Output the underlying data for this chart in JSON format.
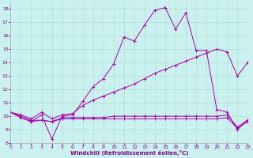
{
  "xlabel": "Windchill (Refroidissement éolien,°C)",
  "xlim": [
    0,
    23
  ],
  "ylim": [
    8,
    18.5
  ],
  "yticks": [
    8,
    9,
    10,
    11,
    12,
    13,
    14,
    15,
    16,
    17,
    18
  ],
  "xticks": [
    0,
    1,
    2,
    3,
    4,
    5,
    6,
    7,
    8,
    9,
    10,
    11,
    12,
    13,
    14,
    15,
    16,
    17,
    18,
    19,
    20,
    21,
    22,
    23
  ],
  "bg_color": "#caf0f0",
  "grid_color": "#aaddcc",
  "line_color": "#aa00aa",
  "lines": [
    [
      10.3,
      9.9,
      9.6,
      10.1,
      8.3,
      10.0,
      10.1,
      11.1,
      12.2,
      12.8,
      13.9,
      15.9,
      15.6,
      16.8,
      17.9,
      18.1,
      16.5,
      17.7,
      14.9,
      14.9,
      10.5,
      10.3,
      9.0,
      9.7
    ],
    [
      10.3,
      10.1,
      9.8,
      10.3,
      9.8,
      10.1,
      10.2,
      10.8,
      11.2,
      11.5,
      11.8,
      12.1,
      12.4,
      12.8,
      13.2,
      13.5,
      13.8,
      14.1,
      14.4,
      14.7,
      15.0,
      14.8,
      13.0,
      14.0
    ],
    [
      10.3,
      10.0,
      9.7,
      9.7,
      9.6,
      9.9,
      9.9,
      9.9,
      9.9,
      9.9,
      10.0,
      10.0,
      10.0,
      10.0,
      10.0,
      10.0,
      10.0,
      10.0,
      10.0,
      10.0,
      10.0,
      10.1,
      9.2,
      9.7
    ],
    [
      10.3,
      9.9,
      9.6,
      9.7,
      9.6,
      9.8,
      9.8,
      9.8,
      9.8,
      9.8,
      9.8,
      9.8,
      9.8,
      9.8,
      9.8,
      9.8,
      9.8,
      9.8,
      9.8,
      9.8,
      9.8,
      9.9,
      9.1,
      9.6
    ]
  ]
}
